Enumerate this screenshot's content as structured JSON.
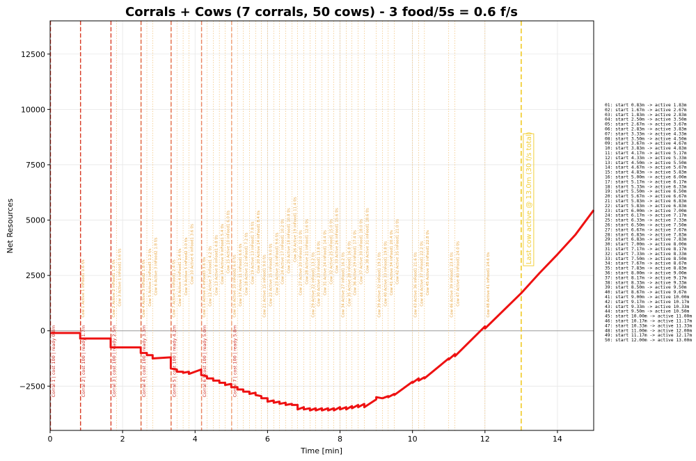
{
  "chart_data": {
    "type": "line",
    "title": "Corrals + Cows (7 corrals, 50 cows) - 3 food/5s = 0.6 f/s",
    "xlabel": "Time [min]",
    "ylabel": "Net Resources",
    "xlim": [
      0,
      15
    ],
    "ylim": [
      -4500,
      14000
    ],
    "x_ticks": [
      0,
      2,
      4,
      6,
      8,
      10,
      12,
      14
    ],
    "y_ticks": [
      -2500,
      0,
      2500,
      5000,
      7500,
      10000,
      12500
    ],
    "grid": true,
    "series": [
      {
        "color": "#ee1111",
        "points": [
          [
            0,
            -100
          ],
          [
            0.83,
            -100
          ],
          [
            0.83,
            -350
          ],
          [
            1.67,
            -350
          ],
          [
            1.67,
            -750
          ],
          [
            2.5,
            -750
          ],
          [
            2.5,
            -1000
          ],
          [
            2.67,
            -1000
          ],
          [
            2.67,
            -1100
          ],
          [
            2.83,
            -1100
          ],
          [
            2.83,
            -1250
          ],
          [
            3.33,
            -1200
          ],
          [
            3.33,
            -1700
          ],
          [
            3.5,
            -1750
          ],
          [
            3.5,
            -1850
          ],
          [
            3.67,
            -1850
          ],
          [
            3.67,
            -1900
          ],
          [
            3.83,
            -1850
          ],
          [
            3.83,
            -1950
          ],
          [
            4.17,
            -1750
          ],
          [
            4.17,
            -2000
          ],
          [
            4.33,
            -2050
          ],
          [
            4.33,
            -2150
          ],
          [
            4.5,
            -2150
          ],
          [
            4.5,
            -2250
          ],
          [
            4.67,
            -2250
          ],
          [
            4.67,
            -2350
          ],
          [
            4.83,
            -2350
          ],
          [
            4.83,
            -2450
          ],
          [
            5.0,
            -2400
          ],
          [
            5.0,
            -2550
          ],
          [
            5.17,
            -2550
          ],
          [
            5.17,
            -2650
          ],
          [
            5.33,
            -2650
          ],
          [
            5.33,
            -2750
          ],
          [
            5.5,
            -2750
          ],
          [
            5.5,
            -2850
          ],
          [
            5.67,
            -2800
          ],
          [
            5.67,
            -2900
          ],
          [
            5.83,
            -2950
          ],
          [
            5.83,
            -3050
          ],
          [
            6.0,
            -3050
          ],
          [
            6.0,
            -3200
          ],
          [
            6.17,
            -3150
          ],
          [
            6.17,
            -3250
          ],
          [
            6.33,
            -3200
          ],
          [
            6.33,
            -3300
          ],
          [
            6.5,
            -3250
          ],
          [
            6.5,
            -3350
          ],
          [
            6.67,
            -3300
          ],
          [
            6.67,
            -3350
          ],
          [
            6.83,
            -3350
          ],
          [
            6.83,
            -3550
          ],
          [
            7.0,
            -3450
          ],
          [
            7.0,
            -3550
          ],
          [
            7.17,
            -3500
          ],
          [
            7.17,
            -3600
          ],
          [
            7.33,
            -3500
          ],
          [
            7.33,
            -3600
          ],
          [
            7.5,
            -3500
          ],
          [
            7.5,
            -3600
          ],
          [
            7.67,
            -3500
          ],
          [
            7.67,
            -3600
          ],
          [
            7.83,
            -3500
          ],
          [
            7.83,
            -3600
          ],
          [
            8.0,
            -3450
          ],
          [
            8.0,
            -3550
          ],
          [
            8.17,
            -3450
          ],
          [
            8.17,
            -3550
          ],
          [
            8.33,
            -3400
          ],
          [
            8.33,
            -3500
          ],
          [
            8.5,
            -3350
          ],
          [
            8.5,
            -3450
          ],
          [
            8.67,
            -3300
          ],
          [
            8.67,
            -3450
          ],
          [
            9.0,
            -3100
          ],
          [
            9.0,
            -3000
          ],
          [
            9.17,
            -3050
          ],
          [
            9.33,
            -2950
          ],
          [
            9.33,
            -3000
          ],
          [
            9.5,
            -2850
          ],
          [
            9.5,
            -2900
          ],
          [
            10.0,
            -2300
          ],
          [
            10.0,
            -2350
          ],
          [
            10.17,
            -2150
          ],
          [
            10.17,
            -2250
          ],
          [
            10.33,
            -2100
          ],
          [
            10.33,
            -2150
          ],
          [
            11.0,
            -1250
          ],
          [
            11.0,
            -1300
          ],
          [
            11.17,
            -1050
          ],
          [
            11.17,
            -1150
          ],
          [
            12.0,
            200
          ],
          [
            12.0,
            100
          ],
          [
            13.0,
            1700
          ],
          [
            13.5,
            2600
          ],
          [
            14.0,
            3450
          ],
          [
            14.5,
            4350
          ],
          [
            15.0,
            5450
          ]
        ]
      }
    ],
    "corrals": [
      {
        "x": 0,
        "label": "Corral 1 | cost 100 | ready 0.8m",
        "color": "#d62f1f"
      },
      {
        "x": 0.83,
        "label": "Corral 2 | cost 100 | ready 1.7m",
        "color": "#d93a27"
      },
      {
        "x": 1.67,
        "label": "Corral 3 | cost 100 | ready 2.5m",
        "color": "#dc3f2c"
      },
      {
        "x": 2.5,
        "label": "Corral 4 | cost 100 | ready 3.3m",
        "color": "#e0623d"
      },
      {
        "x": 3.33,
        "label": "Corral 5 | cost 100 | ready 4.2m",
        "color": "#e56c4a"
      },
      {
        "x": 4.17,
        "label": "Corral 6 | cost 100 | ready 5.0m",
        "color": "#ea8362"
      },
      {
        "x": 5.0,
        "label": "Corral 7 | cost 100 | ready 5.8m",
        "color": "#f0a078"
      }
    ],
    "cow_labels": [
      {
        "x": 0.83,
        "y": 600,
        "text": "Cow 1  Active 1  inFood1  0.6 f/s"
      },
      {
        "x": 1.67,
        "y": 600,
        "text": "Cow 2  Active 2  inFood1  1.2 f/s"
      },
      {
        "x": 1.83,
        "y": 1100,
        "text": "Cow 3  Active 1  inFood1  0.6 f/s"
      },
      {
        "x": 2.5,
        "y": 600,
        "text": "Cow 4  Active 3  inFood2  1.8 f/s"
      },
      {
        "x": 2.67,
        "y": 1100,
        "text": "Cow 5  Active 2  inFood3  1.2 f/s"
      },
      {
        "x": 2.83,
        "y": 1600,
        "text": "Cow 6  Active 3  inFood2  1.8 f/s"
      },
      {
        "x": 3.33,
        "y": 600,
        "text": "Cow 7  Active 4  inFood1  2.4 f/s"
      },
      {
        "x": 3.5,
        "y": 1100,
        "text": "Cow 8  Active 4  inFood1  2.4 f/s"
      },
      {
        "x": 3.67,
        "y": 1600,
        "text": "Cow 9  Active 5  inFood2  3.0 f/s"
      },
      {
        "x": 3.83,
        "y": 2100,
        "text": "Cow 10  Active 6  inFood1  3.6 f/s"
      },
      {
        "x": 4.17,
        "y": 600,
        "text": "Cow 11  Active 6  inFood3  3.6 f/s"
      },
      {
        "x": 4.33,
        "y": 1100,
        "text": "Cow 12  Active 7  inFood1  4.2 f/s"
      },
      {
        "x": 4.5,
        "y": 1600,
        "text": "Cow 13  Active 8  inFood1  4.8 f/s"
      },
      {
        "x": 4.67,
        "y": 2100,
        "text": "Cow 14  Active 9  inFood1  5.4 f/s"
      },
      {
        "x": 4.83,
        "y": 2600,
        "text": "Cow 15  Active 10  inFood1  6.0 f/s"
      },
      {
        "x": 5.0,
        "y": 600,
        "text": "Cow 16  Active 10  inFood2  6.0 f/s"
      },
      {
        "x": 5.17,
        "y": 1100,
        "text": "Cow 17  Active 11  inFood1  6.6 f/s"
      },
      {
        "x": 5.33,
        "y": 1600,
        "text": "Cow 18  Active 12  inFood1  7.2 f/s"
      },
      {
        "x": 5.5,
        "y": 2100,
        "text": "Cow 19  Active 13  inFood1  7.8 f/s"
      },
      {
        "x": 5.67,
        "y": 2600,
        "text": "Cow 20  Active 14  inFood1  8.4 f/s"
      },
      {
        "x": 5.83,
        "y": 600,
        "text": "Cow 21  Active 15  inFood1  9.0 f/s"
      },
      {
        "x": 6.0,
        "y": 1100,
        "text": "Cow 22  Active 15  inFood2  9.0 f/s"
      },
      {
        "x": 6.17,
        "y": 1600,
        "text": "Cow 23  Active 16  inFood1  9.6 f/s"
      },
      {
        "x": 6.33,
        "y": 2100,
        "text": "Cow 24  Active 17  inFood1  10.2 f/s"
      },
      {
        "x": 6.5,
        "y": 2600,
        "text": "Cow 25  Active 18  inFood1  10.8 f/s"
      },
      {
        "x": 6.67,
        "y": 3100,
        "text": "Cow 26  Active 19  inFood1  11.4 f/s"
      },
      {
        "x": 6.83,
        "y": 1600,
        "text": "Cow 27  Active 20  inFood1  12.0 f/s"
      },
      {
        "x": 7.0,
        "y": 2100,
        "text": "Cow 28  Active 21  inFood1  12.6 f/s"
      },
      {
        "x": 7.17,
        "y": 600,
        "text": "Cow 29  Active 22  inFood1  13.2 f/s"
      },
      {
        "x": 7.33,
        "y": 1100,
        "text": "Cow 30  Active 23  inFood1  13.8 f/s"
      },
      {
        "x": 7.5,
        "y": 1600,
        "text": "Cow 31  Active 24  inFood1  14.4 f/s"
      },
      {
        "x": 7.67,
        "y": 2100,
        "text": "Cow 32  Active 25  inFood1  15.0 f/s"
      },
      {
        "x": 7.83,
        "y": 2600,
        "text": "Cow 33  Active 26  inFood1  15.6 f/s"
      },
      {
        "x": 8.0,
        "y": 600,
        "text": "Cow 34  Active 27  inFood1  16.2 f/s"
      },
      {
        "x": 8.17,
        "y": 1100,
        "text": "Cow 35  Active 28  inFood1  16.8 f/s"
      },
      {
        "x": 8.33,
        "y": 1600,
        "text": "Cow 36  Active 29  inFood1  17.4 f/s"
      },
      {
        "x": 8.5,
        "y": 2100,
        "text": "Cow 37  Active 30  inFood1  18.0 f/s"
      },
      {
        "x": 8.67,
        "y": 2600,
        "text": "Cow 38  Active 31  inFood1  18.6 f/s"
      },
      {
        "x": 9.0,
        "y": 600,
        "text": "Cow 39  Active 32  inFood1  19.2 f/s"
      },
      {
        "x": 9.17,
        "y": 1100,
        "text": "Cow 40  Active 33  inFood1  19.8 f/s"
      },
      {
        "x": 9.33,
        "y": 1600,
        "text": "Cow 41  Active 34  inFood1  20.4 f/s"
      },
      {
        "x": 9.5,
        "y": 2100,
        "text": "Cow 42  Active 35  inFood1  21.0 f/s"
      },
      {
        "x": 10.0,
        "y": 600,
        "text": "Cow 43  Active 36  inFood1  21.6 f/s"
      },
      {
        "x": 10.17,
        "y": 1100,
        "text": "Cow 44  Active 37  inFood1  22.2 f/s"
      },
      {
        "x": 10.33,
        "y": 1600,
        "text": "Cow 45  Active 38  inFood1  22.8 f/s"
      },
      {
        "x": 11.0,
        "y": 600,
        "text": "Cow 46  Active 39  inFood1  23.4 f/s"
      },
      {
        "x": 11.17,
        "y": 1100,
        "text": "Cow 47  Active 40  inFood1  24.0 f/s"
      },
      {
        "x": 12.0,
        "y": 600,
        "text": "Cow 48  Active 41  inFood1  24.6 f/s"
      }
    ],
    "cow_line_x": [
      0.83,
      1.67,
      1.83,
      2.5,
      2.67,
      2.83,
      3.33,
      3.5,
      3.67,
      3.83,
      4.17,
      4.33,
      4.5,
      4.67,
      4.83,
      5.0,
      5.17,
      5.33,
      5.5,
      5.67,
      5.83,
      6.0,
      6.17,
      6.33,
      6.5,
      6.67,
      6.83,
      7.0,
      7.17,
      7.33,
      7.5,
      7.67,
      7.83,
      8.0,
      8.17,
      8.33,
      8.5,
      8.67,
      9.0,
      9.17,
      9.33,
      9.5,
      10.0,
      10.17,
      10.33,
      11.0,
      11.17,
      12.0
    ],
    "last_cow": {
      "x": 13.0,
      "label": "Last cow active @ 13.0m  (30 f/s total)",
      "color": "#f2cf3a"
    },
    "schedule": [
      "01: start 0.83m -> active 1.83m",
      "02: start 1.67m -> active 2.67m",
      "03: start 1.83m -> active 2.83m",
      "04: start 2.50m -> active 3.50m",
      "05: start 2.67m -> active 3.67m",
      "06: start 2.83m -> active 3.83m",
      "07: start 3.33m -> active 4.33m",
      "08: start 3.50m -> active 4.50m",
      "09: start 3.67m -> active 4.67m",
      "10: start 3.83m -> active 4.83m",
      "11: start 4.17m -> active 5.17m",
      "12: start 4.33m -> active 5.33m",
      "13: start 4.50m -> active 5.50m",
      "14: start 4.67m -> active 5.67m",
      "15: start 4.83m -> active 5.83m",
      "16: start 5.00m -> active 6.00m",
      "17: start 5.17m -> active 6.17m",
      "18: start 5.33m -> active 6.33m",
      "19: start 5.50m -> active 6.50m",
      "20: start 5.67m -> active 6.67m",
      "21: start 5.83m -> active 6.83m",
      "22: start 5.83m -> active 6.83m",
      "23: start 6.00m -> active 7.00m",
      "24: start 6.17m -> active 7.17m",
      "25: start 6.33m -> active 7.33m",
      "26: start 6.50m -> active 7.50m",
      "27: start 6.67m -> active 7.67m",
      "28: start 6.83m -> active 7.83m",
      "29: start 6.83m -> active 7.83m",
      "30: start 7.00m -> active 8.00m",
      "31: start 7.17m -> active 8.17m",
      "32: start 7.33m -> active 8.33m",
      "33: start 7.50m -> active 8.50m",
      "34: start 7.67m -> active 8.67m",
      "35: start 7.83m -> active 8.83m",
      "36: start 8.00m -> active 9.00m",
      "37: start 8.17m -> active 9.17m",
      "38: start 8.33m -> active 9.33m",
      "39: start 8.50m -> active 9.50m",
      "40: start 8.67m -> active 9.67m",
      "41: start 9.00m -> active 10.00m",
      "42: start 9.17m -> active 10.17m",
      "43: start 9.33m -> active 10.33m",
      "44: start 9.50m -> active 10.50m",
      "45: start 10.00m -> active 11.00m",
      "46: start 10.17m -> active 11.17m",
      "47: start 10.33m -> active 11.33m",
      "48: start 11.00m -> active 12.00m",
      "49: start 11.17m -> active 12.17m",
      "50: start 12.00m -> active 13.00m"
    ]
  }
}
